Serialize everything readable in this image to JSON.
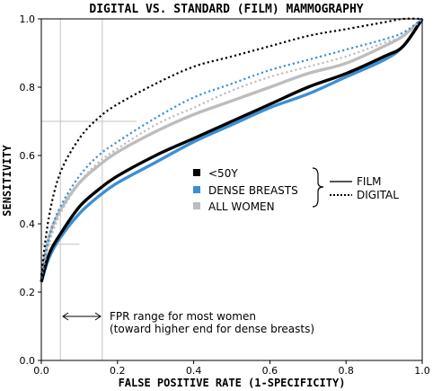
{
  "chart_data": {
    "type": "line",
    "title": "DIGITAL VS. STANDARD (FILM) MAMMOGRAPHY",
    "xlabel": "FALSE POSITIVE RATE (1-SPECIFICITY)",
    "ylabel": "SENSITIVITY",
    "xlim": [
      0,
      1
    ],
    "ylim": [
      0,
      1
    ],
    "x_ticks": [
      "0.0",
      "0.2",
      "0.4",
      "0.6",
      "0.8",
      "1.0"
    ],
    "y_ticks": [
      "0.0",
      "0.2",
      "0.4",
      "0.6",
      "0.8",
      "1.0"
    ],
    "grid": false,
    "x": [
      0,
      0.02,
      0.05,
      0.1,
      0.15,
      0.2,
      0.3,
      0.4,
      0.5,
      0.6,
      0.7,
      0.8,
      0.9,
      0.95,
      1.0
    ],
    "series": [
      {
        "name": "<50Y",
        "style": "solid",
        "color": "#000000",
        "values": [
          0.23,
          0.31,
          0.37,
          0.45,
          0.5,
          0.54,
          0.6,
          0.65,
          0.7,
          0.75,
          0.8,
          0.84,
          0.89,
          0.92,
          1.0
        ]
      },
      {
        "name": "DENSE BREASTS",
        "style": "solid",
        "color": "#3c8fd6",
        "values": [
          0.23,
          0.3,
          0.36,
          0.43,
          0.48,
          0.52,
          0.58,
          0.64,
          0.69,
          0.74,
          0.78,
          0.83,
          0.88,
          0.92,
          1.0
        ]
      },
      {
        "name": "ALL WOMEN",
        "style": "solid",
        "color": "#bdbdbd",
        "values": [
          0.24,
          0.36,
          0.44,
          0.52,
          0.57,
          0.61,
          0.67,
          0.72,
          0.76,
          0.8,
          0.84,
          0.87,
          0.92,
          0.95,
          1.0
        ]
      },
      {
        "name": "<50Y",
        "style": "dotted",
        "color": "#000000",
        "values": [
          0.25,
          0.42,
          0.55,
          0.65,
          0.71,
          0.75,
          0.81,
          0.86,
          0.89,
          0.92,
          0.95,
          0.97,
          0.99,
          1.0,
          1.0
        ]
      },
      {
        "name": "DENSE BREASTS",
        "style": "dotted",
        "color": "#3c8fd6",
        "values": [
          0.24,
          0.36,
          0.45,
          0.54,
          0.6,
          0.64,
          0.71,
          0.77,
          0.81,
          0.85,
          0.88,
          0.91,
          0.94,
          0.96,
          1.0
        ]
      },
      {
        "name": "ALL WOMEN",
        "style": "dotted",
        "color": "#bdbdbd",
        "values": [
          0.24,
          0.34,
          0.43,
          0.52,
          0.58,
          0.62,
          0.69,
          0.74,
          0.79,
          0.83,
          0.86,
          0.89,
          0.93,
          0.95,
          1.0
        ]
      }
    ],
    "legend": {
      "placement": "center-right",
      "groups": [
        {
          "label": "<50Y",
          "color": "#000000"
        },
        {
          "label": "DENSE BREASTS",
          "color": "#3c8fd6"
        },
        {
          "label": "ALL WOMEN",
          "color": "#bdbdbd"
        }
      ],
      "styles": [
        {
          "label": "FILM",
          "style": "solid"
        },
        {
          "label": "DIGITAL",
          "style": "dotted"
        }
      ]
    },
    "reference_lines": {
      "vertical_x": [
        0.05,
        0.16
      ],
      "horizontal_y": [
        0.7,
        0.34
      ]
    },
    "annotation": {
      "line1": "FPR range for most women",
      "line2": "(toward higher end for dense breasts)"
    }
  }
}
